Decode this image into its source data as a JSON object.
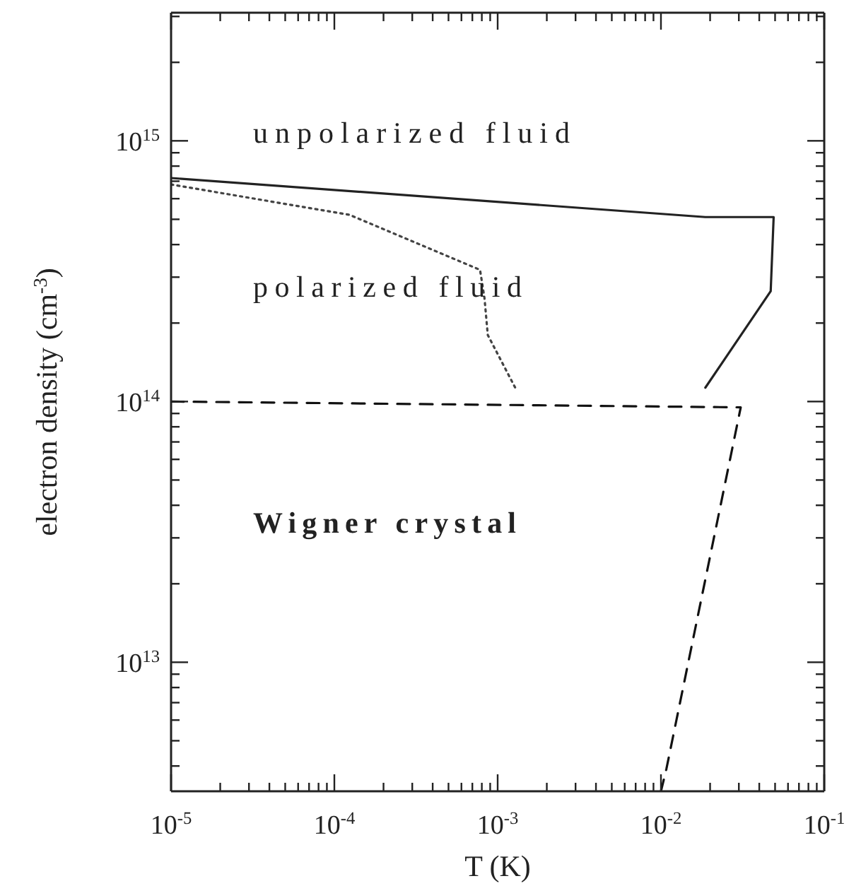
{
  "chart_data": {
    "type": "line",
    "xlabel": "T (K)",
    "ylabel": "electron density (cm$^{-3}$)",
    "annotations": [
      "unpolarized fluid",
      "polarized fluid",
      "Wigner crystal"
    ],
    "log": "xy",
    "xlim": [
      1e-05,
      0.1
    ],
    "ylim": [
      3200000000000.0,
      3100000000000000.0
    ],
    "xticks": [
      {
        "value": 1e-05,
        "label": "10$^{-5}$"
      },
      {
        "value": 2e-05,
        "label": null
      },
      {
        "value": 3e-05,
        "label": null
      },
      {
        "value": 4e-05,
        "label": null
      },
      {
        "value": 5e-05,
        "label": null
      },
      {
        "value": 6e-05,
        "label": null
      },
      {
        "value": 7e-05,
        "label": null
      },
      {
        "value": 8e-05,
        "label": null
      },
      {
        "value": 9e-05,
        "label": null
      },
      {
        "value": 0.0001,
        "label": "10$^{-4}$"
      },
      {
        "value": 0.0002,
        "label": null
      },
      {
        "value": 0.0003,
        "label": null
      },
      {
        "value": 0.0004,
        "label": null
      },
      {
        "value": 0.0005,
        "label": null
      },
      {
        "value": 0.0006,
        "label": null
      },
      {
        "value": 0.0007,
        "label": null
      },
      {
        "value": 0.0008,
        "label": null
      },
      {
        "value": 0.0009,
        "label": null
      },
      {
        "value": 0.001,
        "label": "10$^{-3}$"
      },
      {
        "value": 0.002,
        "label": null
      },
      {
        "value": 0.003,
        "label": null
      },
      {
        "value": 0.004,
        "label": null
      },
      {
        "value": 0.005,
        "label": null
      },
      {
        "value": 0.006,
        "label": null
      },
      {
        "value": 0.007,
        "label": null
      },
      {
        "value": 0.008,
        "label": null
      },
      {
        "value": 0.009,
        "label": null
      },
      {
        "value": 0.01,
        "label": "10$^{-2}$"
      },
      {
        "value": 0.02,
        "label": null
      },
      {
        "value": 0.03,
        "label": null
      },
      {
        "value": 0.04,
        "label": null
      },
      {
        "value": 0.05,
        "label": null
      },
      {
        "value": 0.06,
        "label": null
      },
      {
        "value": 0.07,
        "label": null
      },
      {
        "value": 0.08,
        "label": null
      },
      {
        "value": 0.09,
        "label": null
      },
      {
        "value": 0.1,
        "label": "10$^{-1}$"
      }
    ],
    "yticks": [
      {
        "value": 4000000000000.0,
        "label": null
      },
      {
        "value": 5000000000000.0,
        "label": null
      },
      {
        "value": 6000000000000.0,
        "label": null
      },
      {
        "value": 7000000000000.0,
        "label": null
      },
      {
        "value": 8000000000000.0,
        "label": null
      },
      {
        "value": 9000000000000.0,
        "label": null
      },
      {
        "value": 10000000000000.0,
        "label": "10$^{13}$"
      },
      {
        "value": 20000000000000.0,
        "label": null
      },
      {
        "value": 30000000000000.0,
        "label": null
      },
      {
        "value": 40000000000000.0,
        "label": null
      },
      {
        "value": 50000000000000.0,
        "label": null
      },
      {
        "value": 60000000000000.0,
        "label": null
      },
      {
        "value": 70000000000000.0,
        "label": null
      },
      {
        "value": 80000000000000.0,
        "label": null
      },
      {
        "value": 90000000000000.0,
        "label": null
      },
      {
        "value": 100000000000000.0,
        "label": "10$^{14}$"
      },
      {
        "value": 200000000000000.0,
        "label": null
      },
      {
        "value": 300000000000000.0,
        "label": null
      },
      {
        "value": 400000000000000.0,
        "label": null
      },
      {
        "value": 500000000000000.0,
        "label": null
      },
      {
        "value": 600000000000000.0,
        "label": null
      },
      {
        "value": 700000000000000.0,
        "label": null
      },
      {
        "value": 800000000000000.0,
        "label": null
      },
      {
        "value": 900000000000000.0,
        "label": null
      },
      {
        "value": 1000000000000000.0,
        "label": "10$^{15}$"
      },
      {
        "value": 2000000000000000.0,
        "label": null
      },
      {
        "value": 3000000000000000.0,
        "label": null
      }
    ],
    "series": [
      {
        "color": "#222222",
        "line_style": "solid",
        "x": [
          1e-05,
          0.0187,
          0.049,
          0.047,
          0.0187
        ],
        "values": [
          720000000000000.0,
          510000000000000.0,
          510000000000000.0,
          265000000000000.0,
          113000000000000.0
        ]
      },
      {
        "color": "#444444",
        "line_style": "dotted",
        "x": [
          1e-05,
          0.000124,
          0.00078,
          0.00083,
          0.00087,
          0.00131
        ],
        "values": [
          680000000000000.0,
          520000000000000.0,
          320000000000000.0,
          250000000000000.0,
          180000000000000.0,
          110000000000000.0
        ]
      },
      {
        "color": "#111111",
        "line_style": "dashed",
        "x": [
          1e-05,
          0.0308,
          0.0108,
          0.01
        ],
        "values": [
          100000000000000.0,
          95000000000000.0,
          3900000000000.0,
          3200000000000.0
        ]
      }
    ]
  }
}
